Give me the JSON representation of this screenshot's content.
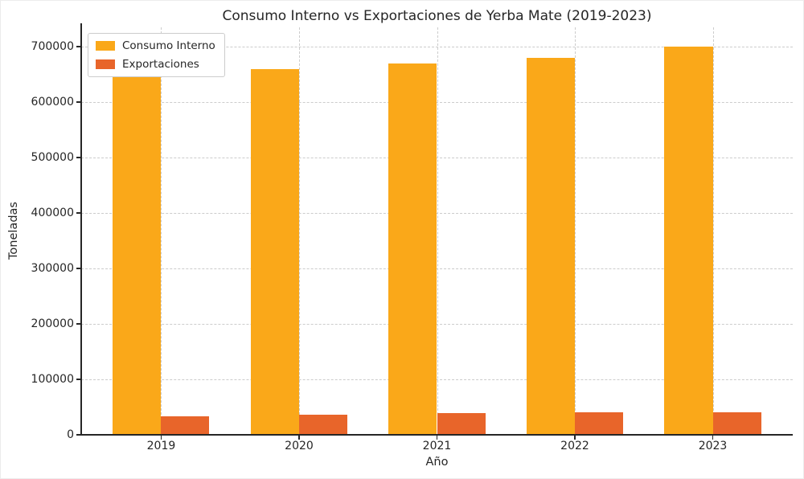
{
  "chart_data": {
    "type": "bar",
    "title": "Consumo Interno vs Exportaciones de Yerba Mate (2019-2023)",
    "xlabel": "Año",
    "ylabel": "Toneladas",
    "categories": [
      "2019",
      "2020",
      "2021",
      "2022",
      "2023"
    ],
    "series": [
      {
        "name": "Consumo Interno",
        "color": "#FAA819",
        "values": [
          650000,
          660000,
          670000,
          680000,
          700000
        ]
      },
      {
        "name": "Exportaciones",
        "color": "#E8652A",
        "values": [
          33000,
          36000,
          39000,
          40000,
          40000
        ]
      }
    ],
    "ylim": [
      0,
      735000
    ],
    "yticks": [
      0,
      100000,
      200000,
      300000,
      400000,
      500000,
      600000,
      700000
    ],
    "grid": {
      "horizontal": true,
      "vertical": true,
      "line_style": "dashed",
      "color": "#cccccc"
    },
    "legend": {
      "position": "upper-left"
    },
    "bar_width_fraction": 0.35,
    "axis_color": "#262626",
    "text_color": "#262626"
  }
}
